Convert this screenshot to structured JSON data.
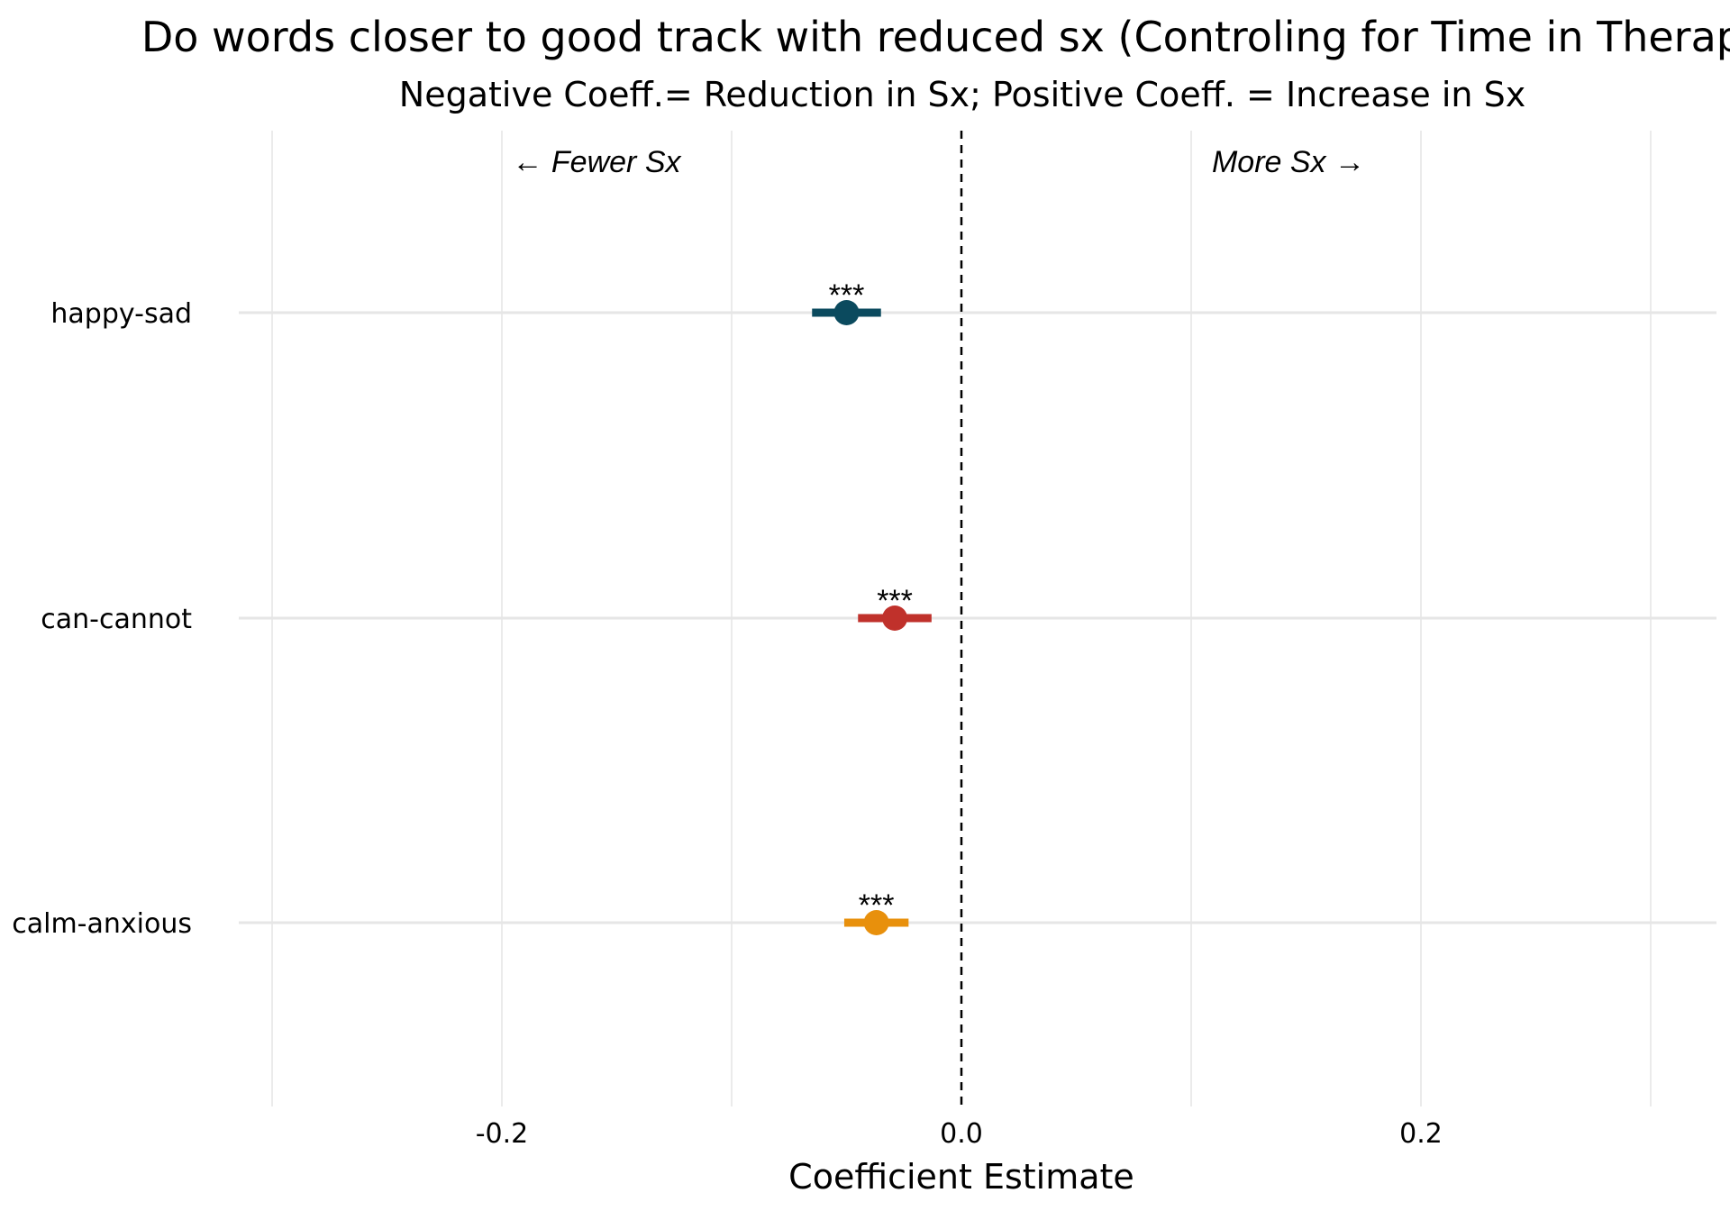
{
  "chart_data": {
    "type": "scatter",
    "title": "Do words closer to good track with reduced sx (Controling for Time in Therapy)",
    "subtitle": "Negative Coeff.= Reduction in Sx; Positive Coeff. = Increase in Sx",
    "xlabel": "Coefficient Estimate",
    "ylabel": "",
    "xlim": [
      -0.3,
      0.3
    ],
    "x_ticks": [
      -0.2,
      0.0,
      0.2
    ],
    "x_tick_labels": [
      "-0.2",
      "0.0",
      "0.2"
    ],
    "minor_gridlines_x": [
      -0.3,
      -0.1,
      0.1,
      0.3
    ],
    "reference_line_x": 0.0,
    "grid": true,
    "legend": "none",
    "annotations": {
      "left": "← Fewer Sx",
      "right": "More Sx →"
    },
    "categories": [
      "happy-sad",
      "can-cannot",
      "calm-anxious"
    ],
    "points": [
      {
        "label": "happy-sad",
        "estimate": -0.05,
        "ci_low": -0.065,
        "ci_high": -0.035,
        "significance": "***",
        "color": "#0b4a5e"
      },
      {
        "label": "can-cannot",
        "estimate": -0.029,
        "ci_low": -0.045,
        "ci_high": -0.013,
        "significance": "***",
        "color": "#c0312b"
      },
      {
        "label": "calm-anxious",
        "estimate": -0.037,
        "ci_low": -0.051,
        "ci_high": -0.023,
        "significance": "***",
        "color": "#e8900c"
      }
    ]
  }
}
